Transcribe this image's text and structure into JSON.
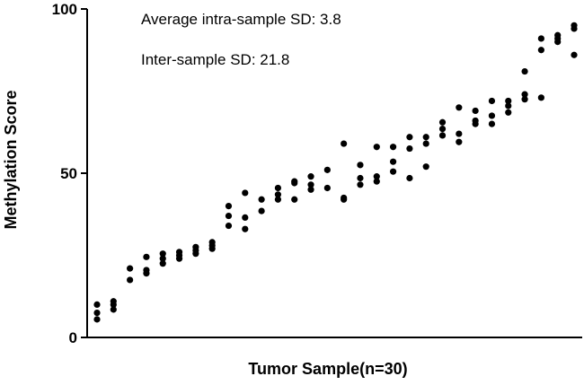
{
  "chart_data": {
    "type": "scatter",
    "title": "",
    "xlabel": "Tumor Sample(n=30)",
    "ylabel": "Methylation Score",
    "ylim": [
      0,
      100
    ],
    "y_ticks": [
      "0",
      "50",
      "100"
    ],
    "x_ticks_shown": false,
    "grid": false,
    "annotations": [
      "Average intra-sample SD: 3.8",
      "Inter-sample SD: 21.8"
    ],
    "point_color": "#000000",
    "series": [
      {
        "points": [
          {
            "x": 1,
            "y": 10.0
          },
          {
            "x": 1,
            "y": 7.5
          },
          {
            "x": 1,
            "y": 5.5
          },
          {
            "x": 2,
            "y": 11.0
          },
          {
            "x": 2,
            "y": 10.0
          },
          {
            "x": 2,
            "y": 8.5
          },
          {
            "x": 3,
            "y": 21.0
          },
          {
            "x": 3,
            "y": 17.5
          },
          {
            "x": 4,
            "y": 24.5
          },
          {
            "x": 4,
            "y": 20.5
          },
          {
            "x": 4,
            "y": 19.5
          },
          {
            "x": 5,
            "y": 25.5
          },
          {
            "x": 5,
            "y": 24.0
          },
          {
            "x": 5,
            "y": 22.5
          },
          {
            "x": 6,
            "y": 26.0
          },
          {
            "x": 6,
            "y": 25.0
          },
          {
            "x": 6,
            "y": 24.0
          },
          {
            "x": 7,
            "y": 27.5
          },
          {
            "x": 7,
            "y": 26.5
          },
          {
            "x": 7,
            "y": 25.5
          },
          {
            "x": 8,
            "y": 29.0
          },
          {
            "x": 8,
            "y": 28.0
          },
          {
            "x": 8,
            "y": 27.0
          },
          {
            "x": 9,
            "y": 40.0
          },
          {
            "x": 9,
            "y": 37.0
          },
          {
            "x": 9,
            "y": 34.0
          },
          {
            "x": 10,
            "y": 44.0
          },
          {
            "x": 10,
            "y": 36.5
          },
          {
            "x": 10,
            "y": 33.0
          },
          {
            "x": 11,
            "y": 42.0
          },
          {
            "x": 11,
            "y": 38.5
          },
          {
            "x": 12,
            "y": 45.5
          },
          {
            "x": 12,
            "y": 43.5
          },
          {
            "x": 12,
            "y": 42.0
          },
          {
            "x": 13,
            "y": 47.5
          },
          {
            "x": 13,
            "y": 47.0
          },
          {
            "x": 13,
            "y": 42.0
          },
          {
            "x": 14,
            "y": 49.0
          },
          {
            "x": 14,
            "y": 46.5
          },
          {
            "x": 14,
            "y": 45.0
          },
          {
            "x": 15,
            "y": 51.0
          },
          {
            "x": 15,
            "y": 45.5
          },
          {
            "x": 16,
            "y": 59.0
          },
          {
            "x": 16,
            "y": 42.5
          },
          {
            "x": 16,
            "y": 42.0
          },
          {
            "x": 17,
            "y": 52.5
          },
          {
            "x": 17,
            "y": 48.5
          },
          {
            "x": 17,
            "y": 46.5
          },
          {
            "x": 18,
            "y": 58.0
          },
          {
            "x": 18,
            "y": 49.0
          },
          {
            "x": 18,
            "y": 47.5
          },
          {
            "x": 19,
            "y": 58.0
          },
          {
            "x": 19,
            "y": 53.5
          },
          {
            "x": 19,
            "y": 50.5
          },
          {
            "x": 20,
            "y": 61.0
          },
          {
            "x": 20,
            "y": 57.5
          },
          {
            "x": 20,
            "y": 48.5
          },
          {
            "x": 21,
            "y": 61.0
          },
          {
            "x": 21,
            "y": 59.0
          },
          {
            "x": 21,
            "y": 52.0
          },
          {
            "x": 22,
            "y": 65.5
          },
          {
            "x": 22,
            "y": 63.5
          },
          {
            "x": 22,
            "y": 61.5
          },
          {
            "x": 23,
            "y": 70.0
          },
          {
            "x": 23,
            "y": 62.0
          },
          {
            "x": 23,
            "y": 59.5
          },
          {
            "x": 24,
            "y": 69.0
          },
          {
            "x": 24,
            "y": 66.0
          },
          {
            "x": 24,
            "y": 65.0
          },
          {
            "x": 25,
            "y": 72.0
          },
          {
            "x": 25,
            "y": 67.5
          },
          {
            "x": 25,
            "y": 65.0
          },
          {
            "x": 26,
            "y": 72.0
          },
          {
            "x": 26,
            "y": 70.5
          },
          {
            "x": 26,
            "y": 68.5
          },
          {
            "x": 27,
            "y": 81.0
          },
          {
            "x": 27,
            "y": 74.0
          },
          {
            "x": 27,
            "y": 72.5
          },
          {
            "x": 28,
            "y": 91.0
          },
          {
            "x": 28,
            "y": 87.5
          },
          {
            "x": 28,
            "y": 73.0
          },
          {
            "x": 29,
            "y": 92.0
          },
          {
            "x": 29,
            "y": 91.0
          },
          {
            "x": 29,
            "y": 90.0
          },
          {
            "x": 30,
            "y": 95.0
          },
          {
            "x": 30,
            "y": 94.0
          },
          {
            "x": 30,
            "y": 86.0
          }
        ]
      }
    ]
  }
}
